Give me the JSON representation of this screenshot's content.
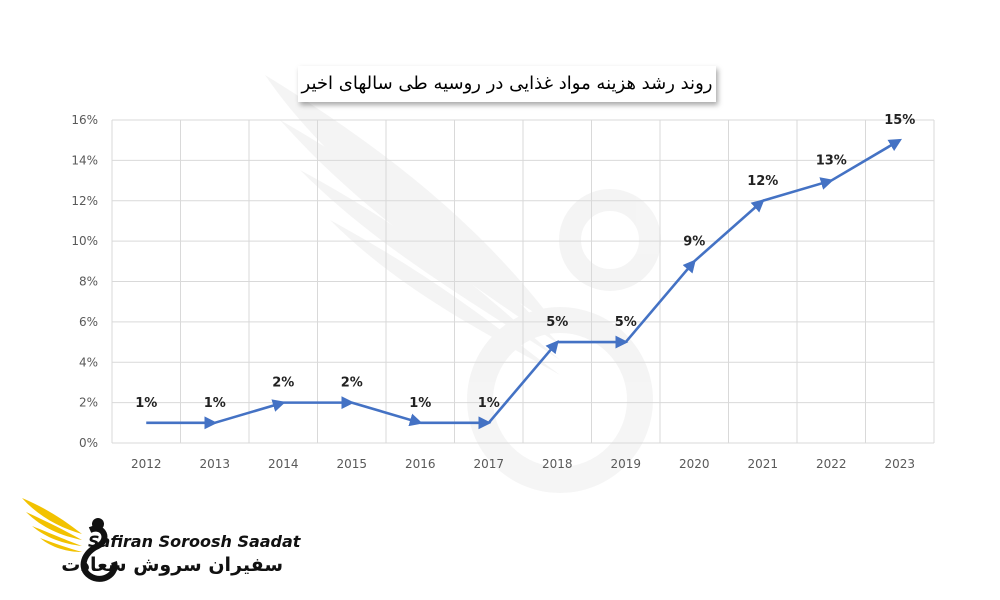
{
  "chart_data": {
    "type": "line",
    "title": "روند رشد هزینه مواد غذایی در روسیه طی سالهای اخیر",
    "x": [
      "2012",
      "2013",
      "2014",
      "2015",
      "2016",
      "2017",
      "2018",
      "2019",
      "2020",
      "2021",
      "2022",
      "2023"
    ],
    "series": [
      {
        "values": [
          1,
          1,
          2,
          2,
          1,
          1,
          5,
          5,
          9,
          12,
          13,
          15
        ],
        "labels": [
          "1%",
          "1%",
          "2%",
          "2%",
          "1%",
          "1%",
          "5%",
          "5%",
          "9%",
          "12%",
          "13%",
          "15%"
        ]
      }
    ],
    "yticks": [
      "0%",
      "2%",
      "4%",
      "6%",
      "8%",
      "10%",
      "12%",
      "14%",
      "16%"
    ],
    "ylim": [
      0,
      16
    ],
    "grid": true,
    "legend": "none",
    "line_color": "#4472c4"
  },
  "logo": {
    "name_en": "Safiran Soroosh Saadat",
    "name_fa": "سفیران سروش سعادت",
    "accent_color": "#f2c200"
  }
}
